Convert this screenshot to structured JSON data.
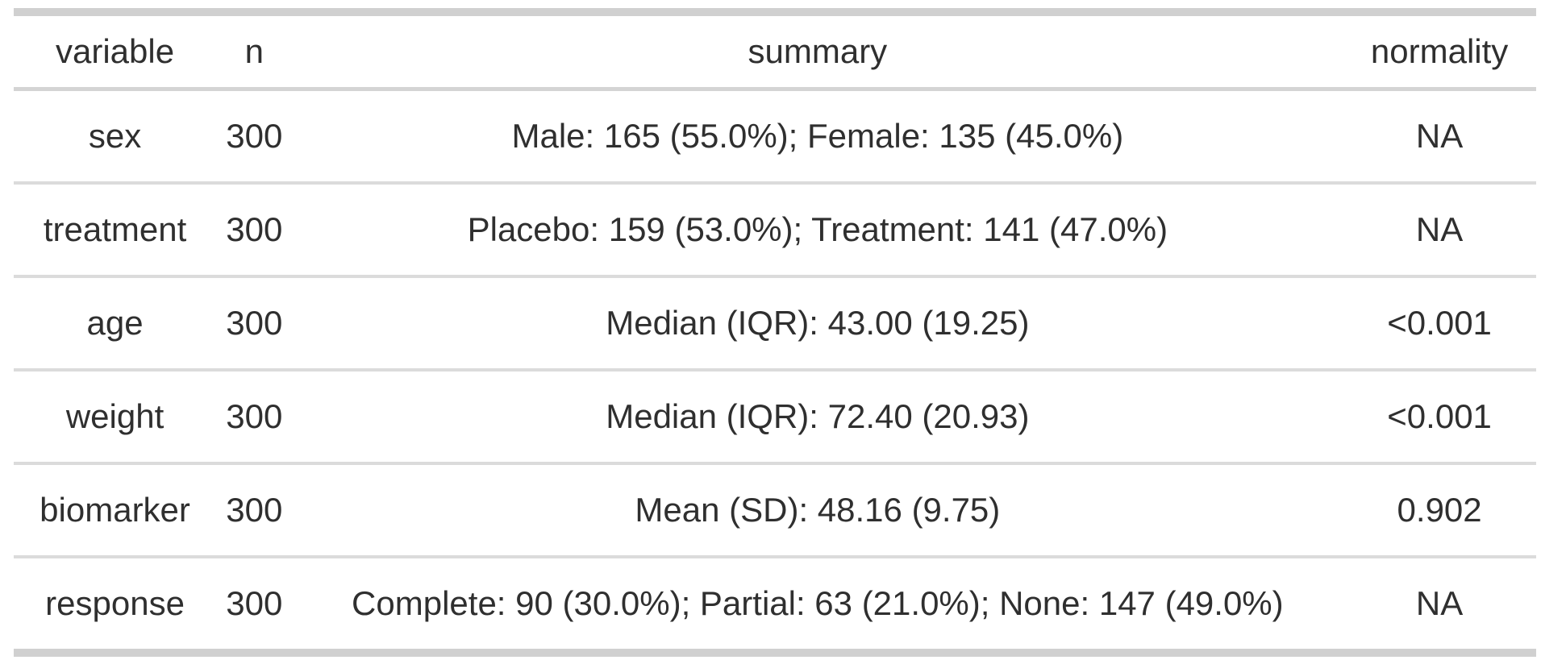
{
  "chart_data": {
    "type": "table",
    "columns": [
      "variable",
      "n",
      "summary",
      "normality"
    ],
    "rows": [
      [
        "sex",
        "300",
        "Male: 165 (55.0%); Female: 135 (45.0%)",
        "NA"
      ],
      [
        "treatment",
        "300",
        "Placebo: 159 (53.0%); Treatment: 141 (47.0%)",
        "NA"
      ],
      [
        "age",
        "300",
        "Median (IQR): 43.00 (19.25)",
        "<0.001"
      ],
      [
        "weight",
        "300",
        "Median (IQR): 72.40 (20.93)",
        "<0.001"
      ],
      [
        "biomarker",
        "300",
        "Mean (SD): 48.16 (9.75)",
        "0.902"
      ],
      [
        "response",
        "300",
        "Complete: 90 (30.0%); Partial: 63 (21.0%); None: 147 (49.0%)",
        "NA"
      ]
    ]
  },
  "colors": {
    "background": "#ffffff",
    "text": "#2f2f2f",
    "thick_border": "#d0d0d0",
    "header_border": "#d4d4d4",
    "row_border": "#dbdbdb"
  }
}
